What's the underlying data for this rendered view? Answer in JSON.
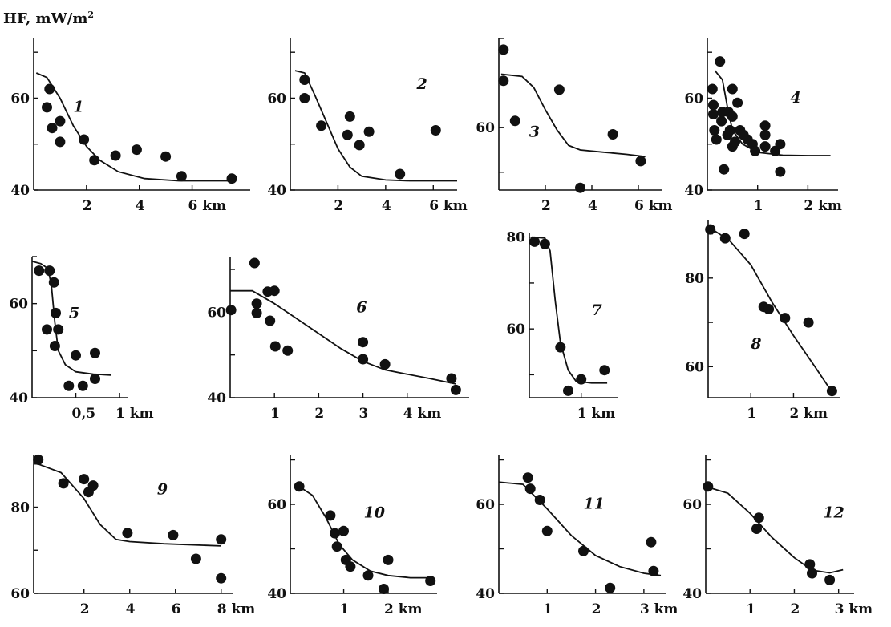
{
  "figure": {
    "ylabel": "HF, mW/m",
    "ylabel_sup": "2"
  },
  "chart_data": [
    {
      "type": "scatter",
      "label": "1",
      "xlim": [
        0,
        8.2
      ],
      "ylim": [
        40,
        73
      ],
      "xticks": [
        2,
        4,
        6
      ],
      "xticklabels": [
        "2",
        "4",
        "6 km"
      ],
      "yticks": [
        40,
        60
      ],
      "yticklabels": [
        "40",
        "60"
      ],
      "points": [
        [
          0.5,
          58
        ],
        [
          0.6,
          62
        ],
        [
          0.7,
          53.5
        ],
        [
          1.0,
          55
        ],
        [
          1.0,
          50.5
        ],
        [
          1.9,
          51
        ],
        [
          2.3,
          46.5
        ],
        [
          3.1,
          47.5
        ],
        [
          3.9,
          48.8
        ],
        [
          5.0,
          47.3
        ],
        [
          5.6,
          43
        ],
        [
          7.5,
          42.5
        ]
      ],
      "curve": [
        [
          0.1,
          65.5
        ],
        [
          0.5,
          64.5
        ],
        [
          1.0,
          60
        ],
        [
          1.5,
          54
        ],
        [
          2.0,
          49.5
        ],
        [
          2.5,
          46.5
        ],
        [
          3.2,
          44
        ],
        [
          4.2,
          42.5
        ],
        [
          5.5,
          42
        ],
        [
          7.5,
          42
        ]
      ]
    },
    {
      "type": "scatter",
      "label": "2",
      "xlim": [
        0,
        7
      ],
      "ylim": [
        40,
        73
      ],
      "xticks": [
        2,
        4,
        6
      ],
      "xticklabels": [
        "2",
        "4",
        "6 km"
      ],
      "yticks": [
        40,
        60
      ],
      "yticklabels": [
        "40",
        "60"
      ],
      "points": [
        [
          0.6,
          64
        ],
        [
          0.6,
          60
        ],
        [
          1.3,
          54
        ],
        [
          2.4,
          52
        ],
        [
          2.5,
          56
        ],
        [
          2.9,
          49.8
        ],
        [
          3.3,
          52.7
        ],
        [
          4.6,
          43.5
        ],
        [
          6.1,
          53
        ]
      ],
      "curve": [
        [
          0.2,
          66
        ],
        [
          0.6,
          65.5
        ],
        [
          1.0,
          61
        ],
        [
          1.5,
          55
        ],
        [
          2.0,
          49
        ],
        [
          2.5,
          45
        ],
        [
          3.0,
          43
        ],
        [
          4.0,
          42.2
        ],
        [
          5.0,
          42
        ],
        [
          7.0,
          42
        ]
      ]
    },
    {
      "type": "scatter",
      "label": "3",
      "xlim": [
        0,
        7
      ],
      "ylim": [
        46,
        80
      ],
      "xticks": [
        2,
        4,
        6
      ],
      "xticklabels": [
        "2",
        "4",
        "6 km"
      ],
      "yticks": [
        60
      ],
      "yticklabels": [
        "60"
      ],
      "points": [
        [
          0.2,
          77.5
        ],
        [
          0.2,
          70.5
        ],
        [
          0.7,
          61.5
        ],
        [
          2.6,
          68.5
        ],
        [
          3.5,
          46.5
        ],
        [
          4.9,
          58.5
        ],
        [
          6.1,
          52.5
        ]
      ],
      "curve": [
        [
          0.1,
          72
        ],
        [
          1.0,
          71.5
        ],
        [
          1.5,
          69
        ],
        [
          2.0,
          64
        ],
        [
          2.5,
          59.5
        ],
        [
          3.0,
          56
        ],
        [
          3.5,
          55
        ],
        [
          4.5,
          54.5
        ],
        [
          5.5,
          54
        ],
        [
          6.3,
          53.5
        ]
      ]
    },
    {
      "type": "scatter",
      "label": "4",
      "xlim": [
        0,
        2.6
      ],
      "ylim": [
        40,
        73
      ],
      "xticks": [
        1,
        2
      ],
      "xticklabels": [
        "1",
        "2 km"
      ],
      "yticks": [
        40,
        60
      ],
      "yticklabels": [
        "40",
        "60"
      ],
      "points": [
        [
          0.1,
          62
        ],
        [
          0.12,
          58.5
        ],
        [
          0.12,
          56.5
        ],
        [
          0.14,
          53
        ],
        [
          0.18,
          51
        ],
        [
          0.25,
          68
        ],
        [
          0.28,
          55
        ],
        [
          0.3,
          57
        ],
        [
          0.33,
          44.5
        ],
        [
          0.4,
          52
        ],
        [
          0.42,
          57
        ],
        [
          0.45,
          53
        ],
        [
          0.5,
          62
        ],
        [
          0.5,
          56
        ],
        [
          0.5,
          49.5
        ],
        [
          0.55,
          50.5
        ],
        [
          0.6,
          59
        ],
        [
          0.65,
          53
        ],
        [
          0.72,
          52
        ],
        [
          0.8,
          51
        ],
        [
          0.9,
          50
        ],
        [
          0.95,
          48.5
        ],
        [
          1.15,
          54
        ],
        [
          1.15,
          52
        ],
        [
          1.15,
          49.5
        ],
        [
          1.35,
          48.5
        ],
        [
          1.45,
          50
        ],
        [
          1.45,
          44
        ]
      ],
      "curve": [
        [
          0.15,
          66
        ],
        [
          0.3,
          64
        ],
        [
          0.4,
          58
        ],
        [
          0.5,
          53
        ],
        [
          0.7,
          50
        ],
        [
          1.0,
          48.2
        ],
        [
          1.5,
          47.6
        ],
        [
          2.0,
          47.5
        ],
        [
          2.45,
          47.5
        ]
      ]
    },
    {
      "type": "scatter",
      "label": "5",
      "xlim": [
        0,
        1.1
      ],
      "ylim": [
        40,
        70
      ],
      "xticks": [
        0.5,
        1
      ],
      "xticklabels": [
        "0,5",
        "1 km"
      ],
      "yticks": [
        40,
        60
      ],
      "yticklabels": [
        "40",
        "60"
      ],
      "points": [
        [
          0.08,
          67
        ],
        [
          0.17,
          54.5
        ],
        [
          0.2,
          67
        ],
        [
          0.25,
          64.5
        ],
        [
          0.26,
          51
        ],
        [
          0.27,
          58
        ],
        [
          0.3,
          54.5
        ],
        [
          0.42,
          42.5
        ],
        [
          0.5,
          49
        ],
        [
          0.58,
          42.5
        ],
        [
          0.72,
          49.5
        ],
        [
          0.72,
          44
        ]
      ],
      "curve": [
        [
          0.0,
          69
        ],
        [
          0.1,
          68.5
        ],
        [
          0.18,
          67.5
        ],
        [
          0.22,
          64
        ],
        [
          0.26,
          56
        ],
        [
          0.3,
          50
        ],
        [
          0.38,
          47
        ],
        [
          0.5,
          45.5
        ],
        [
          0.7,
          45
        ],
        [
          0.9,
          44.8
        ]
      ]
    },
    {
      "type": "scatter",
      "label": "6",
      "xlim": [
        0,
        5.4
      ],
      "ylim": [
        40,
        73
      ],
      "xticks": [
        1,
        2,
        3,
        4
      ],
      "xticklabels": [
        "1",
        "2",
        "3",
        "4 km"
      ],
      "yticks": [
        40,
        60
      ],
      "yticklabels": [
        "40",
        "60"
      ],
      "points": [
        [
          0.02,
          60.5
        ],
        [
          0.55,
          71.5
        ],
        [
          0.6,
          62
        ],
        [
          0.6,
          59.8
        ],
        [
          0.85,
          64.8
        ],
        [
          0.9,
          58
        ],
        [
          1.0,
          65
        ],
        [
          1.02,
          52
        ],
        [
          1.3,
          51
        ],
        [
          3.0,
          53
        ],
        [
          3.0,
          49
        ],
        [
          3.5,
          47.8
        ],
        [
          5.0,
          44.5
        ],
        [
          5.1,
          41.8
        ]
      ],
      "curve": [
        [
          0.0,
          65
        ],
        [
          0.5,
          65
        ],
        [
          1.0,
          62
        ],
        [
          1.5,
          58.5
        ],
        [
          2.0,
          55
        ],
        [
          2.5,
          51.5
        ],
        [
          3.0,
          48.5
        ],
        [
          3.5,
          46.5
        ],
        [
          4.0,
          45.5
        ],
        [
          4.5,
          44.5
        ],
        [
          5.1,
          43.2
        ]
      ]
    },
    {
      "type": "scatter",
      "label": "7",
      "xlim": [
        0,
        1.7
      ],
      "ylim": [
        45,
        81
      ],
      "xticks": [
        1
      ],
      "xticklabels": [
        "1 km"
      ],
      "yticks": [
        60,
        80
      ],
      "yticklabels": [
        "60",
        "80"
      ],
      "points": [
        [
          0.1,
          79
        ],
        [
          0.3,
          78.5
        ],
        [
          0.6,
          56
        ],
        [
          0.75,
          46.5
        ],
        [
          1.0,
          49
        ],
        [
          1.45,
          51
        ]
      ],
      "curve": [
        [
          0.05,
          80
        ],
        [
          0.3,
          79.8
        ],
        [
          0.4,
          77
        ],
        [
          0.5,
          66
        ],
        [
          0.6,
          57
        ],
        [
          0.75,
          51
        ],
        [
          0.9,
          48.6
        ],
        [
          1.2,
          48.2
        ],
        [
          1.5,
          48.2
        ]
      ]
    },
    {
      "type": "scatter",
      "label": "8",
      "xlim": [
        0,
        3.1
      ],
      "ylim": [
        53,
        93
      ],
      "xticks": [
        1,
        2
      ],
      "xticklabels": [
        "1",
        "2 km"
      ],
      "yticks": [
        60,
        80
      ],
      "yticklabels": [
        "60",
        "80"
      ],
      "points": [
        [
          0.05,
          91
        ],
        [
          0.4,
          89
        ],
        [
          0.85,
          90
        ],
        [
          1.3,
          73.5
        ],
        [
          1.42,
          73
        ],
        [
          1.8,
          71
        ],
        [
          2.35,
          70
        ],
        [
          2.9,
          54.5
        ]
      ],
      "curve": [
        [
          0.1,
          91
        ],
        [
          0.5,
          88.5
        ],
        [
          1.0,
          83
        ],
        [
          1.5,
          74.5
        ],
        [
          2.0,
          67
        ],
        [
          2.5,
          60
        ],
        [
          2.85,
          55
        ]
      ]
    },
    {
      "type": "scatter",
      "label": "9",
      "xlim": [
        -0.2,
        8.5
      ],
      "ylim": [
        60,
        92
      ],
      "xticks": [
        2,
        4,
        6,
        8
      ],
      "xticklabels": [
        "2",
        "4",
        "6",
        "8 km"
      ],
      "yticks": [
        60,
        80
      ],
      "yticklabels": [
        "60",
        "80"
      ],
      "points": [
        [
          0.0,
          91
        ],
        [
          1.1,
          85.5
        ],
        [
          2.0,
          86.5
        ],
        [
          2.2,
          83.5
        ],
        [
          2.4,
          85
        ],
        [
          3.9,
          74
        ],
        [
          5.9,
          73.5
        ],
        [
          6.9,
          68
        ],
        [
          8.0,
          72.5
        ],
        [
          8.0,
          63.5
        ]
      ],
      "curve": [
        [
          0.0,
          90
        ],
        [
          1.0,
          88
        ],
        [
          2.0,
          82
        ],
        [
          2.7,
          76
        ],
        [
          3.4,
          72.5
        ],
        [
          4.0,
          72
        ],
        [
          5.5,
          71.5
        ],
        [
          8.0,
          71
        ]
      ]
    },
    {
      "type": "scatter",
      "label": "10",
      "xlim": [
        -0.2,
        3.1
      ],
      "ylim": [
        40,
        71
      ],
      "xticks": [
        1,
        2
      ],
      "xticklabels": [
        "1",
        "2 km"
      ],
      "yticks": [
        40,
        60
      ],
      "yticklabels": [
        "40",
        "60"
      ],
      "points": [
        [
          0.0,
          64
        ],
        [
          0.7,
          57.5
        ],
        [
          0.8,
          53.5
        ],
        [
          0.85,
          50.5
        ],
        [
          1.0,
          54
        ],
        [
          1.05,
          47.5
        ],
        [
          1.15,
          46
        ],
        [
          1.55,
          44
        ],
        [
          1.9,
          41
        ],
        [
          2.0,
          47.5
        ],
        [
          2.95,
          42.8
        ]
      ],
      "curve": [
        [
          0.0,
          64
        ],
        [
          0.3,
          62
        ],
        [
          0.6,
          57
        ],
        [
          0.9,
          51
        ],
        [
          1.2,
          47.5
        ],
        [
          1.6,
          45
        ],
        [
          2.0,
          44
        ],
        [
          2.5,
          43.5
        ],
        [
          2.9,
          43.5
        ]
      ]
    },
    {
      "type": "scatter",
      "label": "11",
      "xlim": [
        0,
        3.45
      ],
      "ylim": [
        40,
        71
      ],
      "xticks": [
        1,
        2,
        3
      ],
      "xticklabels": [
        "1",
        "2",
        "3 km"
      ],
      "yticks": [
        40,
        60
      ],
      "yticklabels": [
        "40",
        "60"
      ],
      "points": [
        [
          0.6,
          66
        ],
        [
          0.65,
          63.5
        ],
        [
          0.85,
          61
        ],
        [
          1.0,
          54
        ],
        [
          1.75,
          49.5
        ],
        [
          2.3,
          41.2
        ],
        [
          3.15,
          51.5
        ],
        [
          3.2,
          45
        ]
      ],
      "curve": [
        [
          0.0,
          65
        ],
        [
          0.5,
          64.5
        ],
        [
          1.0,
          59
        ],
        [
          1.5,
          53
        ],
        [
          2.0,
          48.5
        ],
        [
          2.5,
          46
        ],
        [
          3.0,
          44.5
        ],
        [
          3.35,
          44
        ]
      ]
    },
    {
      "type": "scatter",
      "label": "12",
      "xlim": [
        0,
        3.35
      ],
      "ylim": [
        40,
        71
      ],
      "xticks": [
        1,
        2,
        3
      ],
      "xticklabels": [
        "1",
        "2",
        "3 km"
      ],
      "yticks": [
        40,
        60
      ],
      "yticklabels": [
        "40",
        "60"
      ],
      "points": [
        [
          0.05,
          64
        ],
        [
          1.15,
          54.5
        ],
        [
          1.2,
          57
        ],
        [
          2.35,
          46.5
        ],
        [
          2.4,
          44.5
        ],
        [
          2.8,
          43
        ]
      ],
      "curve": [
        [
          0.0,
          64
        ],
        [
          0.5,
          62.5
        ],
        [
          1.0,
          58
        ],
        [
          1.5,
          52.5
        ],
        [
          2.0,
          48
        ],
        [
          2.4,
          45.2
        ],
        [
          2.8,
          44.6
        ],
        [
          3.1,
          45.3
        ]
      ]
    }
  ]
}
